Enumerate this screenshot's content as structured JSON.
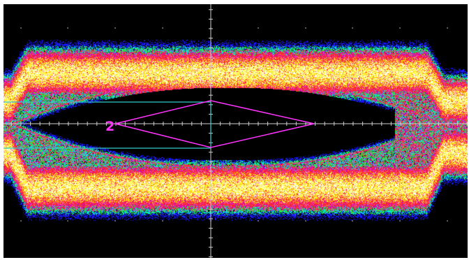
{
  "display": {
    "background_color": "#000000",
    "frame_color": "#ffffff",
    "graticule_color": "#d0d0d0",
    "persistence_palette": [
      "#1a1aff",
      "#00e6e6",
      "#2ee62e",
      "#cc00cc",
      "#ff2a2a",
      "#ff5a8c",
      "#ffd600",
      "#ffff66",
      "#ffffff"
    ]
  },
  "mask": {
    "label": "2",
    "color": "#ff33ff",
    "shape": "diamond"
  },
  "cursors": {
    "color": "#33cccc",
    "count": 2
  }
}
